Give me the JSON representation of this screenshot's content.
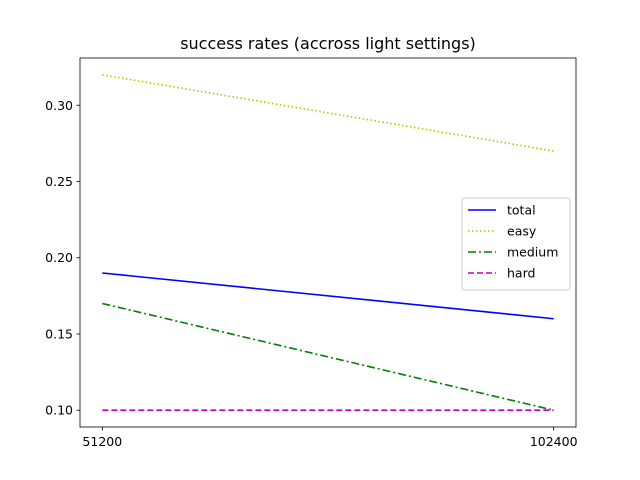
{
  "chart_data": {
    "type": "line",
    "title": "success rates (accross light settings)",
    "xlabel": "",
    "ylabel": "",
    "x": [
      51200,
      102400
    ],
    "x_tick_labels": [
      "51200",
      "102400"
    ],
    "y_ticks": [
      0.1,
      0.15,
      0.2,
      0.25,
      0.3
    ],
    "y_tick_labels": [
      "0.10",
      "0.15",
      "0.20",
      "0.25",
      "0.30"
    ],
    "ylim": [
      0.089,
      0.331
    ],
    "grid": false,
    "legend_position": "center-right",
    "series": [
      {
        "name": "total",
        "values": [
          0.19,
          0.16
        ],
        "color": "#0000ff",
        "style": "solid"
      },
      {
        "name": "easy",
        "values": [
          0.32,
          0.27
        ],
        "color": "#bfbf00",
        "style": "dotted"
      },
      {
        "name": "medium",
        "values": [
          0.17,
          0.1
        ],
        "color": "#008000",
        "style": "dashdot"
      },
      {
        "name": "hard",
        "values": [
          0.1,
          0.1
        ],
        "color": "#bf00bf",
        "style": "dashed"
      }
    ]
  }
}
